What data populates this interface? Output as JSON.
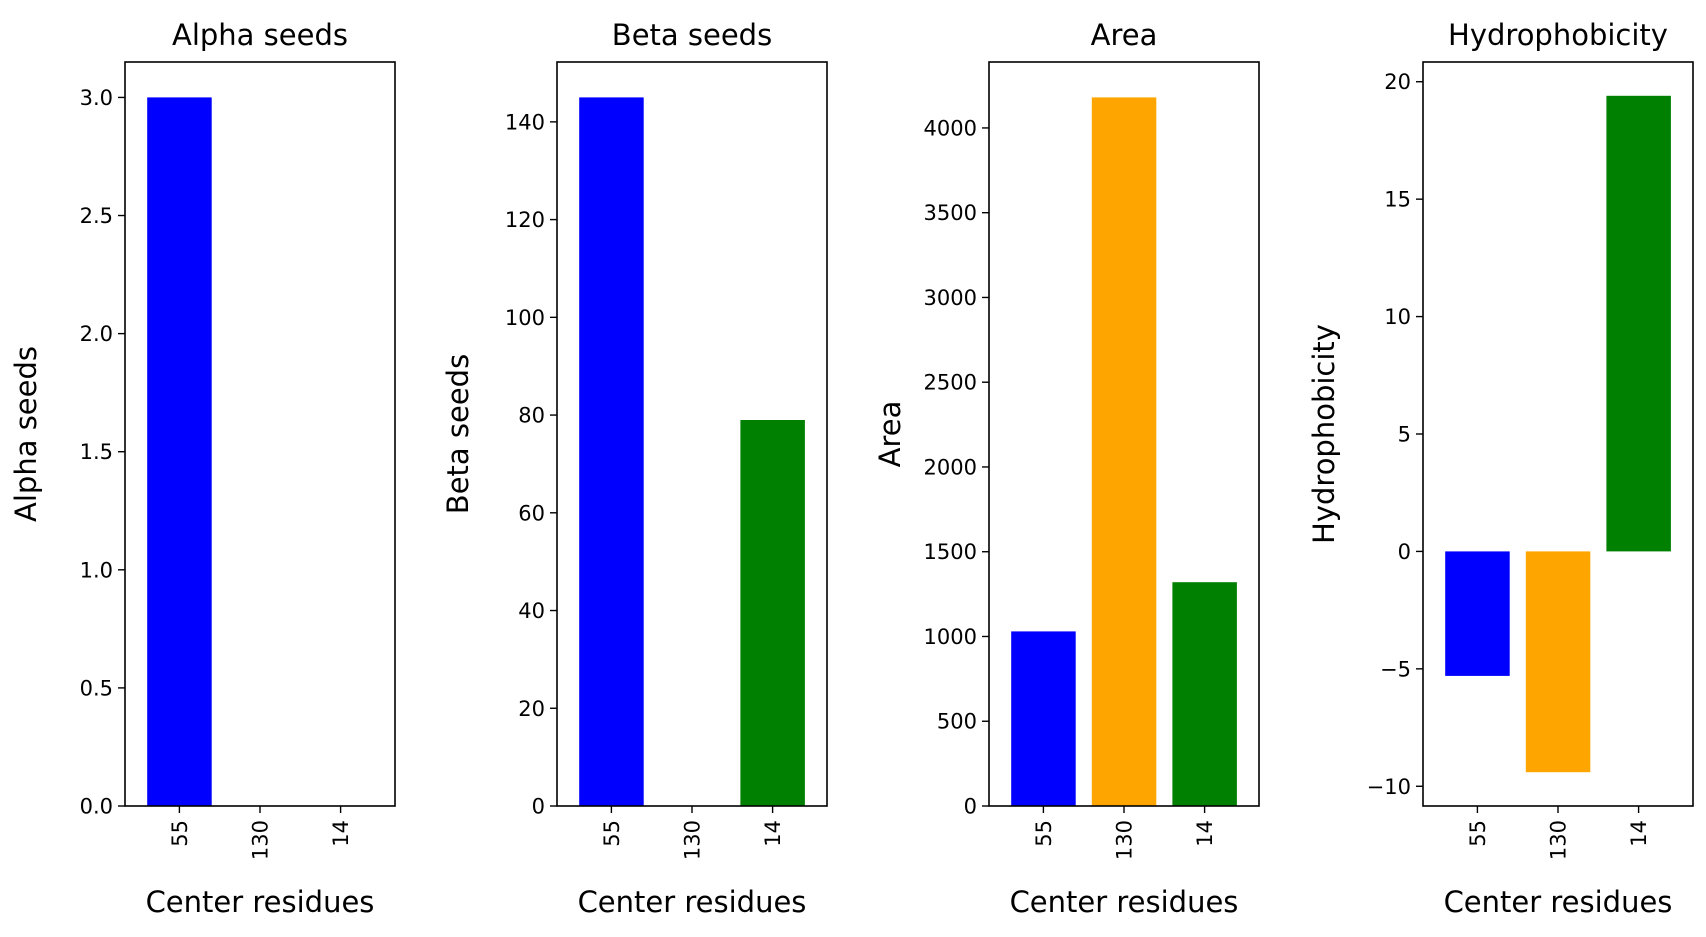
{
  "chart_data": [
    {
      "type": "bar",
      "title": "Alpha seeds",
      "xlabel": "Center residues",
      "ylabel": "Alpha seeds",
      "categories": [
        "55",
        "130",
        "14"
      ],
      "values": [
        3.0,
        0.0,
        0.0
      ],
      "colors": [
        "#0000ff",
        "#ffa500",
        "#008000"
      ],
      "ylim": [
        0,
        3.15
      ],
      "yticks": [
        0.0,
        0.5,
        1.0,
        1.5,
        2.0,
        2.5,
        3.0
      ],
      "ytick_labels": [
        "0.0",
        "0.5",
        "1.0",
        "1.5",
        "2.0",
        "2.5",
        "3.0"
      ],
      "grid": false
    },
    {
      "type": "bar",
      "title": "Beta seeds",
      "xlabel": "Center residues",
      "ylabel": "Beta seeds",
      "categories": [
        "55",
        "130",
        "14"
      ],
      "values": [
        145,
        0,
        79
      ],
      "colors": [
        "#0000ff",
        "#ffa500",
        "#008000"
      ],
      "ylim": [
        0,
        152.25
      ],
      "yticks": [
        0,
        20,
        40,
        60,
        80,
        100,
        120,
        140
      ],
      "ytick_labels": [
        "0",
        "20",
        "40",
        "60",
        "80",
        "100",
        "120",
        "140"
      ],
      "grid": false
    },
    {
      "type": "bar",
      "title": "Area",
      "xlabel": "Center residues",
      "ylabel": "Area",
      "categories": [
        "55",
        "130",
        "14"
      ],
      "values": [
        1030,
        4180,
        1320
      ],
      "colors": [
        "#0000ff",
        "#ffa500",
        "#008000"
      ],
      "ylim": [
        0,
        4389
      ],
      "yticks": [
        0,
        500,
        1000,
        1500,
        2000,
        2500,
        3000,
        3500,
        4000
      ],
      "ytick_labels": [
        "0",
        "500",
        "1000",
        "1500",
        "2000",
        "2500",
        "3000",
        "3500",
        "4000"
      ],
      "grid": false
    },
    {
      "type": "bar",
      "title": "Hydrophobicity",
      "xlabel": "Center residues",
      "ylabel": "Hydrophobicity",
      "categories": [
        "55",
        "130",
        "14"
      ],
      "values": [
        -5.3,
        -9.4,
        19.4
      ],
      "colors": [
        "#0000ff",
        "#ffa500",
        "#008000"
      ],
      "ylim": [
        -10.84,
        20.84
      ],
      "yticks": [
        -10,
        -5,
        0,
        5,
        10,
        15,
        20
      ],
      "ytick_labels": [
        "−10",
        "−5",
        "0",
        "5",
        "10",
        "15",
        "20"
      ],
      "grid": false
    }
  ]
}
